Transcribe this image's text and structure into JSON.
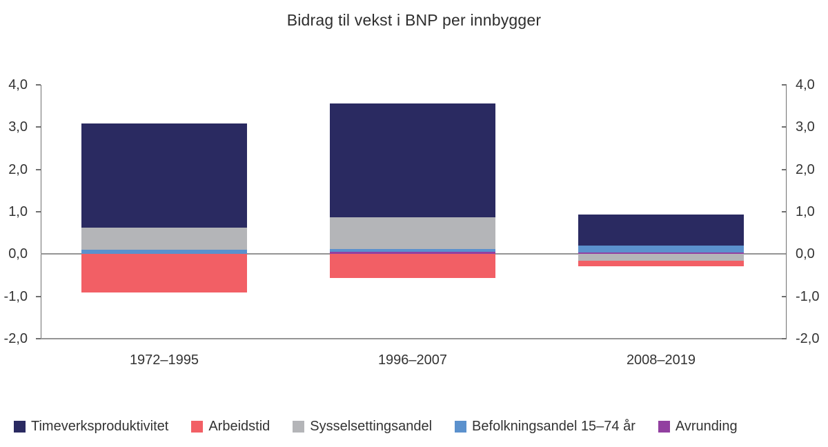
{
  "page": {
    "background": "#ffffff"
  },
  "chart_data": {
    "type": "bar",
    "stacked": true,
    "title": "Bidrag til vekst i BNP per innbygger",
    "categories": [
      "1972–1995",
      "1996–2007",
      "2008–2019"
    ],
    "series": [
      {
        "name": "Timeverksproduktivitet",
        "color": "#2a2a61",
        "values": [
          2.46,
          2.69,
          0.73
        ]
      },
      {
        "name": "Arbeidstid",
        "color": "#f25f65",
        "values": [
          -0.9,
          -0.57,
          -0.12
        ]
      },
      {
        "name": "Sysselsettingsandel",
        "color": "#b4b5b8",
        "values": [
          0.51,
          0.75,
          -0.16
        ]
      },
      {
        "name": "Befolkningsandel 15–74 år",
        "color": "#5b91cd",
        "values": [
          0.11,
          0.06,
          0.17
        ]
      },
      {
        "name": "Avrunding",
        "color": "#9240a0",
        "values": [
          0.0,
          0.06,
          0.03
        ]
      }
    ],
    "ylim": [
      -2.0,
      4.0
    ],
    "ytick_values": [
      4,
      3,
      2,
      1,
      0,
      -1,
      -2
    ],
    "ytick_labels": [
      "4,0",
      "3,0",
      "2,0",
      "1,0",
      "0,0",
      "-1,0",
      "-2,0"
    ],
    "yaxis_sides": [
      "left",
      "right"
    ],
    "zero_line": true,
    "grid": false,
    "legend_position": "bottom",
    "axis_color": "#6f6f6f",
    "line_color": "#949494",
    "text_color": "#333333"
  }
}
